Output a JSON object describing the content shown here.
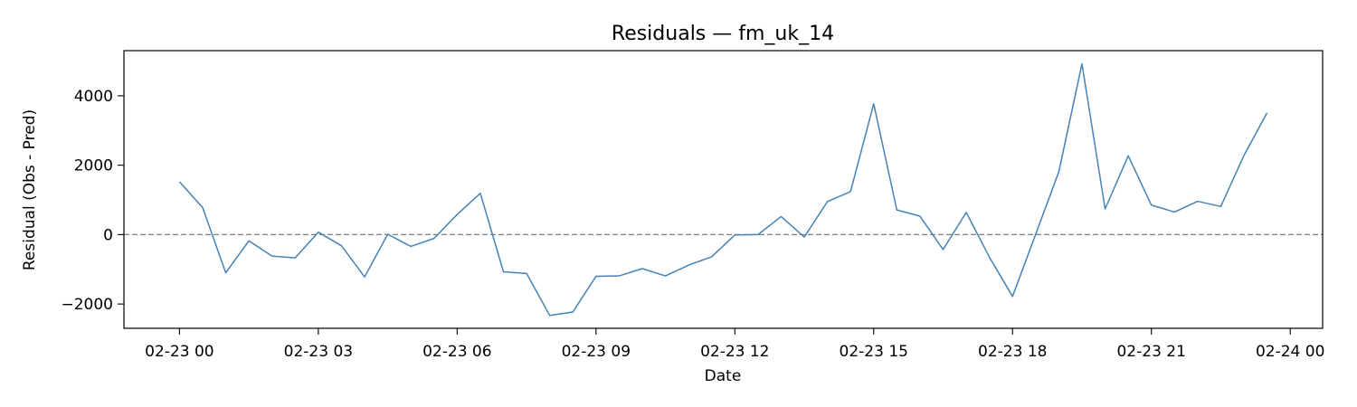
{
  "chart_data": {
    "type": "line",
    "title": "Residuals — fm_uk_14",
    "xlabel": "Date",
    "ylabel": "Residual (Obs - Pred)",
    "x_tick_labels": [
      "02-23 00",
      "02-23 03",
      "02-23 06",
      "02-23 09",
      "02-23 12",
      "02-23 15",
      "02-23 18",
      "02-23 21",
      "02-24 00"
    ],
    "y_tick_labels": [
      "−2000",
      "0",
      "2000",
      "4000"
    ],
    "y_ticks": [
      -2000,
      0,
      2000,
      4000
    ],
    "xlim": [
      "2023-02-22T22:48",
      "2023-02-24T00:42"
    ],
    "ylim": [
      -2700,
      5300
    ],
    "grid": false,
    "reference_line": {
      "y": 0,
      "style": "dashed",
      "color": "#808080"
    },
    "series": [
      {
        "color": "#4682b4",
        "x": [
          "2023-02-23T00:00",
          "2023-02-23T00:30",
          "2023-02-23T01:00",
          "2023-02-23T01:30",
          "2023-02-23T02:00",
          "2023-02-23T02:30",
          "2023-02-23T03:00",
          "2023-02-23T03:30",
          "2023-02-23T04:00",
          "2023-02-23T04:30",
          "2023-02-23T05:00",
          "2023-02-23T05:30",
          "2023-02-23T06:00",
          "2023-02-23T06:30",
          "2023-02-23T07:00",
          "2023-02-23T07:30",
          "2023-02-23T08:00",
          "2023-02-23T08:30",
          "2023-02-23T09:00",
          "2023-02-23T09:30",
          "2023-02-23T10:00",
          "2023-02-23T10:30",
          "2023-02-23T11:00",
          "2023-02-23T11:30",
          "2023-02-23T12:00",
          "2023-02-23T12:30",
          "2023-02-23T13:00",
          "2023-02-23T13:30",
          "2023-02-23T14:00",
          "2023-02-23T14:30",
          "2023-02-23T15:00",
          "2023-02-23T15:30",
          "2023-02-23T16:00",
          "2023-02-23T16:30",
          "2023-02-23T17:00",
          "2023-02-23T17:30",
          "2023-02-23T18:00",
          "2023-02-23T18:30",
          "2023-02-23T19:00",
          "2023-02-23T19:30",
          "2023-02-23T20:00",
          "2023-02-23T20:30",
          "2023-02-23T21:00",
          "2023-02-23T21:30",
          "2023-02-23T22:00",
          "2023-02-23T22:30",
          "2023-02-23T23:00",
          "2023-02-23T23:30"
        ],
        "y": [
          1520,
          780,
          -1100,
          -180,
          -620,
          -670,
          70,
          -320,
          -1220,
          10,
          -340,
          -110,
          580,
          1190,
          -1070,
          -1120,
          -2330,
          -2230,
          -1200,
          -1190,
          -980,
          -1190,
          -880,
          -640,
          -10,
          0,
          520,
          -70,
          950,
          1240,
          3770,
          710,
          530,
          -430,
          640,
          -650,
          -1780,
          10,
          1810,
          4920,
          740,
          2270,
          850,
          650,
          960,
          810,
          2280,
          3510
        ]
      }
    ]
  }
}
